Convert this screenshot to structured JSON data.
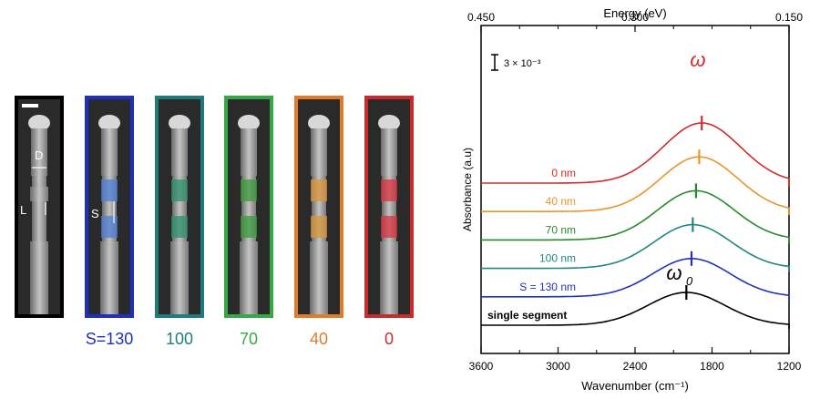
{
  "panels": [
    {
      "label": "",
      "border": "#000000",
      "tint": null,
      "markers": [
        "D",
        "L"
      ],
      "scale_bar": true
    },
    {
      "label": "S=130",
      "border": "#1f2fc4",
      "tint": "#4d7fd6",
      "markers": [
        "S"
      ],
      "scale_bar": false
    },
    {
      "label": "100",
      "border": "#1e7d7a",
      "tint": "#2f8f6a",
      "markers": [],
      "scale_bar": false
    },
    {
      "label": "70",
      "border": "#36a845",
      "tint": "#3a9b3a",
      "markers": [],
      "scale_bar": false
    },
    {
      "label": "40",
      "border": "#e07b2a",
      "tint": "#d9953b",
      "markers": [],
      "scale_bar": false
    },
    {
      "label": "0",
      "border": "#cc2a2a",
      "tint": "#d8323c",
      "markers": [],
      "scale_bar": false
    }
  ],
  "chart_data": {
    "type": "line",
    "xlabel": "Wavenumber (cm⁻¹)",
    "x2label": "Energy (eV)",
    "ylabel": "Absorbance (a.u)",
    "xlim": [
      3600,
      1200
    ],
    "xticks": [
      3600,
      3000,
      2400,
      1800,
      1200
    ],
    "x2ticks": [
      "0.450",
      "0.300",
      "0.150"
    ],
    "scale_annotation": "3 × 10⁻³",
    "peak_label_top": "ω",
    "peak_label_bottom": "ω",
    "peak_label_bottom_sub": "0",
    "series": [
      {
        "name": "0 nm",
        "color": "#d22b2b",
        "peak": 1880,
        "offset": 5
      },
      {
        "name": "40 nm",
        "color": "#e8962a",
        "peak": 1900,
        "offset": 4
      },
      {
        "name": "70 nm",
        "color": "#2a8a2a",
        "peak": 1925,
        "offset": 3
      },
      {
        "name": "100 nm",
        "color": "#218585",
        "peak": 1950,
        "offset": 2
      },
      {
        "name": "S = 130 nm",
        "color": "#2233b8",
        "peak": 1960,
        "offset": 1
      },
      {
        "name": "single segment",
        "color": "#000000",
        "peak": 2000,
        "offset": 0
      }
    ]
  }
}
